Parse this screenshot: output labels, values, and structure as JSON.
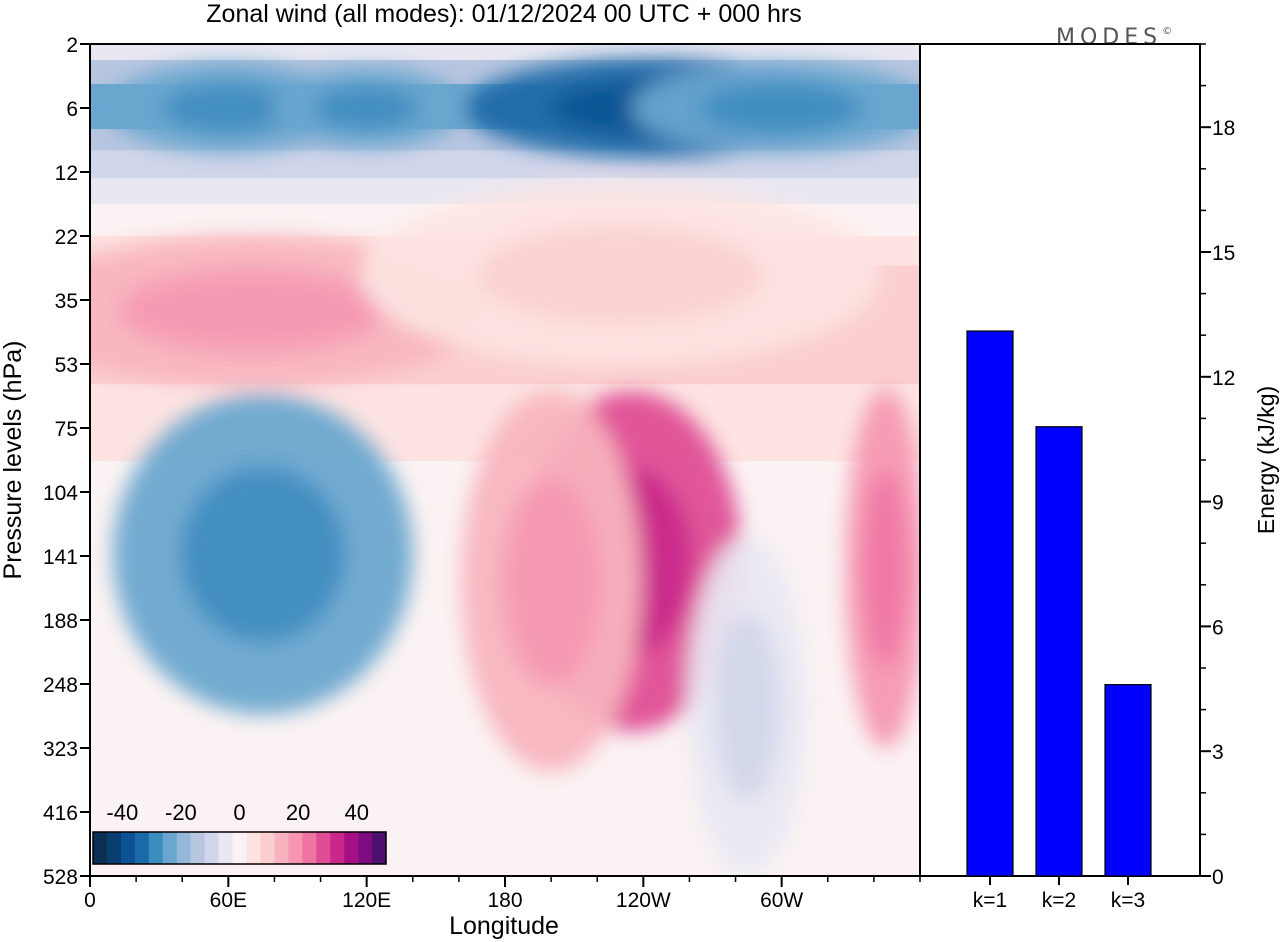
{
  "chart_data": {
    "title": "Zonal wind (all modes):  01/12/2024  00 UTC  + 000 hrs",
    "brand": "MODES",
    "brand_mark": "©",
    "heatmap": {
      "type": "heatmap",
      "xlabel": "Longitude",
      "ylabel": "Pressure levels (hPa)",
      "x_ticks": [
        "0",
        "60E",
        "120E",
        "180",
        "120W",
        "60W"
      ],
      "x_tick_values": [
        0,
        60,
        120,
        180,
        240,
        300
      ],
      "x_range": [
        0,
        360
      ],
      "y_levels": [
        2,
        6,
        12,
        22,
        35,
        53,
        75,
        104,
        141,
        188,
        248,
        323,
        416,
        528
      ],
      "colorbar": {
        "tick_labels": [
          "-40",
          "-20",
          "0",
          "20",
          "40"
        ],
        "tick_values": [
          -40,
          -20,
          0,
          20,
          40
        ],
        "range": [
          -50,
          50
        ],
        "step": 5,
        "colors": [
          "#0b2f54",
          "#083d70",
          "#0a5291",
          "#1a6aa8",
          "#3d8cc0",
          "#6aa6cf",
          "#93b8d8",
          "#b8c6e0",
          "#d2d6ea",
          "#e9e8f2",
          "#fbf3f3",
          "#fde4e2",
          "#fbcfd0",
          "#f8b4be",
          "#f597b1",
          "#ef74a4",
          "#df4d95",
          "#c9278a",
          "#a31086",
          "#7d0c82",
          "#4e0f6e"
        ]
      },
      "features": [
        {
          "lon": 60,
          "lev": 6,
          "value": -25
        },
        {
          "lon": 120,
          "lev": 6,
          "value": -22
        },
        {
          "lon": 245,
          "lev": 6,
          "value": -32
        },
        {
          "lon": 300,
          "lev": 6,
          "value": -22
        },
        {
          "lon": 70,
          "lev": 38,
          "value": 12
        },
        {
          "lon": 230,
          "lev": 30,
          "value": 5
        },
        {
          "lon": 75,
          "lev": 140,
          "value": -22
        },
        {
          "lon": 235,
          "lev": 145,
          "value": 30
        },
        {
          "lon": 200,
          "lev": 160,
          "value": 16
        },
        {
          "lon": 345,
          "lev": 150,
          "value": 20
        },
        {
          "lon": 285,
          "lev": 275,
          "value": -6
        }
      ]
    },
    "bars": {
      "type": "bar",
      "categories": [
        "k=1",
        "k=2",
        "k=3"
      ],
      "values": [
        13.1,
        10.8,
        4.6
      ],
      "ylabel": "Energy (kJ/kg)",
      "ylim": [
        0,
        20
      ],
      "y_ticks": [
        0,
        3,
        6,
        9,
        12,
        15,
        18
      ],
      "bar_color": "#0000ff"
    }
  }
}
